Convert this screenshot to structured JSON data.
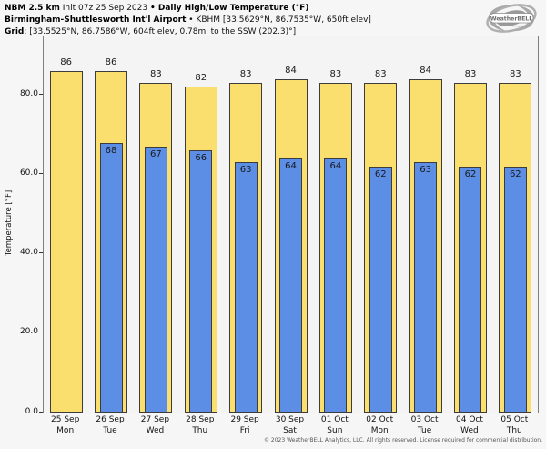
{
  "header": {
    "lines": [
      [
        {
          "text": "NBM 2.5 km",
          "bold": true
        },
        {
          "text": " Init 07z 25 Sep 2023 ",
          "bold": false
        },
        {
          "text": "• Daily High/Low Temperature (°F)",
          "bold": true
        }
      ],
      [
        {
          "text": "Birmingham-Shuttlesworth Int'l Airport",
          "bold": true
        },
        {
          "text": " • KBHM [33.5629°N, 86.7535°W, 650ft elev]",
          "bold": false
        }
      ],
      [
        {
          "text": "Grid",
          "bold": true
        },
        {
          "text": ": [33.5525°N, 86.7586°W, 604ft elev, 0.78mi to the SSW (202.3)°]",
          "bold": false
        }
      ]
    ]
  },
  "logo": {
    "text": "WeatherBELL",
    "subtext": "Analytics LLC"
  },
  "footer": {
    "copyright": "© 2023 WeatherBELL Analytics, LLC. All rights reserved. License required for commercial distribution."
  },
  "chart_data": {
    "type": "bar",
    "title": "NBM 2.5 km Init 07z 25 Sep 2023 • Daily High/Low Temperature (°F)",
    "subtitle": "Birmingham-Shuttlesworth Int'l Airport • KBHM",
    "categories_date": [
      "25 Sep",
      "26 Sep",
      "27 Sep",
      "28 Sep",
      "29 Sep",
      "30 Sep",
      "01 Oct",
      "02 Oct",
      "03 Oct",
      "04 Oct",
      "05 Oct"
    ],
    "categories_day": [
      "Mon",
      "Tue",
      "Wed",
      "Thu",
      "Fri",
      "Sat",
      "Sun",
      "Mon",
      "Tue",
      "Wed",
      "Thu"
    ],
    "series": [
      {
        "name": "Daily High",
        "color": "#FBDF6E",
        "values": [
          86,
          86,
          83,
          82,
          83,
          84,
          83,
          83,
          84,
          83,
          83
        ]
      },
      {
        "name": "Daily Low",
        "color": "#5C8EE6",
        "values": [
          null,
          68,
          67,
          66,
          63,
          64,
          64,
          62,
          63,
          62,
          62
        ]
      }
    ],
    "ylabel": "Temperature [°F]",
    "yticks": [
      0,
      20,
      40,
      60,
      80
    ],
    "ytick_labels": [
      "0.0",
      "20.0",
      "40.0",
      "60.0",
      "80.0"
    ],
    "ylim": [
      0,
      94.7
    ],
    "grid": false,
    "legend": "none",
    "bar_border_color": "#3c3c3c",
    "plot_bg": "#f4f4f4"
  }
}
